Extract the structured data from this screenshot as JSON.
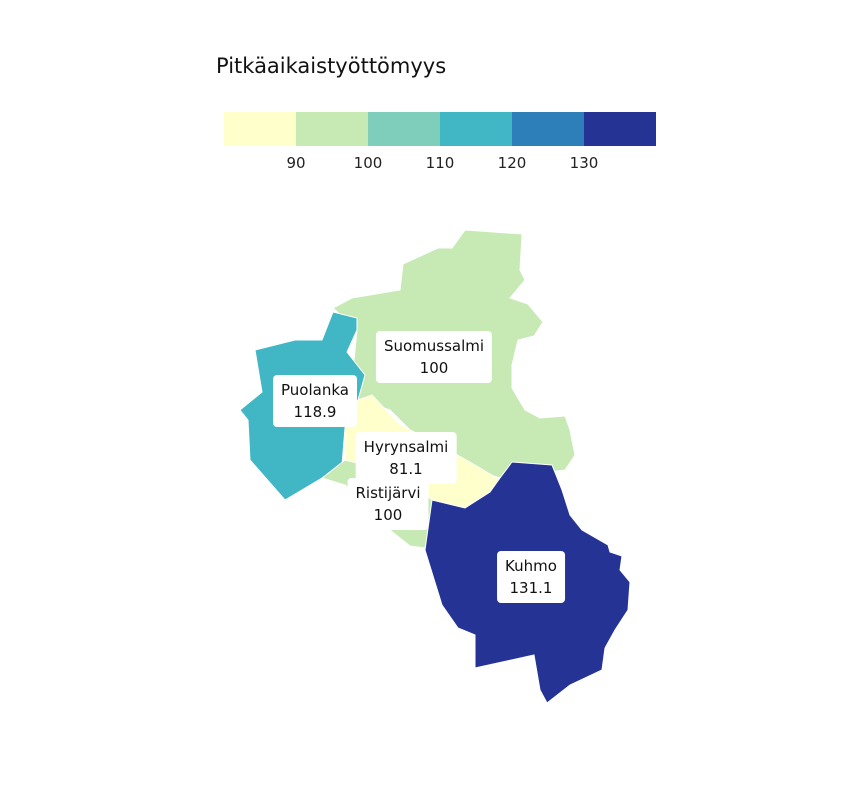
{
  "legend": {
    "title": "Pitkäaikaistyöttömyys",
    "ticks": [
      "90",
      "100",
      "110",
      "120",
      "130"
    ],
    "colors": [
      "#ffffcc",
      "#c7e9b4",
      "#7fcdbb",
      "#41b6c4",
      "#2c7fb8",
      "#253494"
    ]
  },
  "regions": [
    {
      "name": "Suomussalmi",
      "value": "100",
      "color": "#c7e9b4"
    },
    {
      "name": "Puolanka",
      "value": "118.9",
      "color": "#41b6c4"
    },
    {
      "name": "Hyrynsalmi",
      "value": "81.1",
      "color": "#ffffcc"
    },
    {
      "name": "Ristijärvi",
      "value": "100",
      "color": "#c7e9b4"
    },
    {
      "name": "Kuhmo",
      "value": "131.1",
      "color": "#253494"
    }
  ]
}
